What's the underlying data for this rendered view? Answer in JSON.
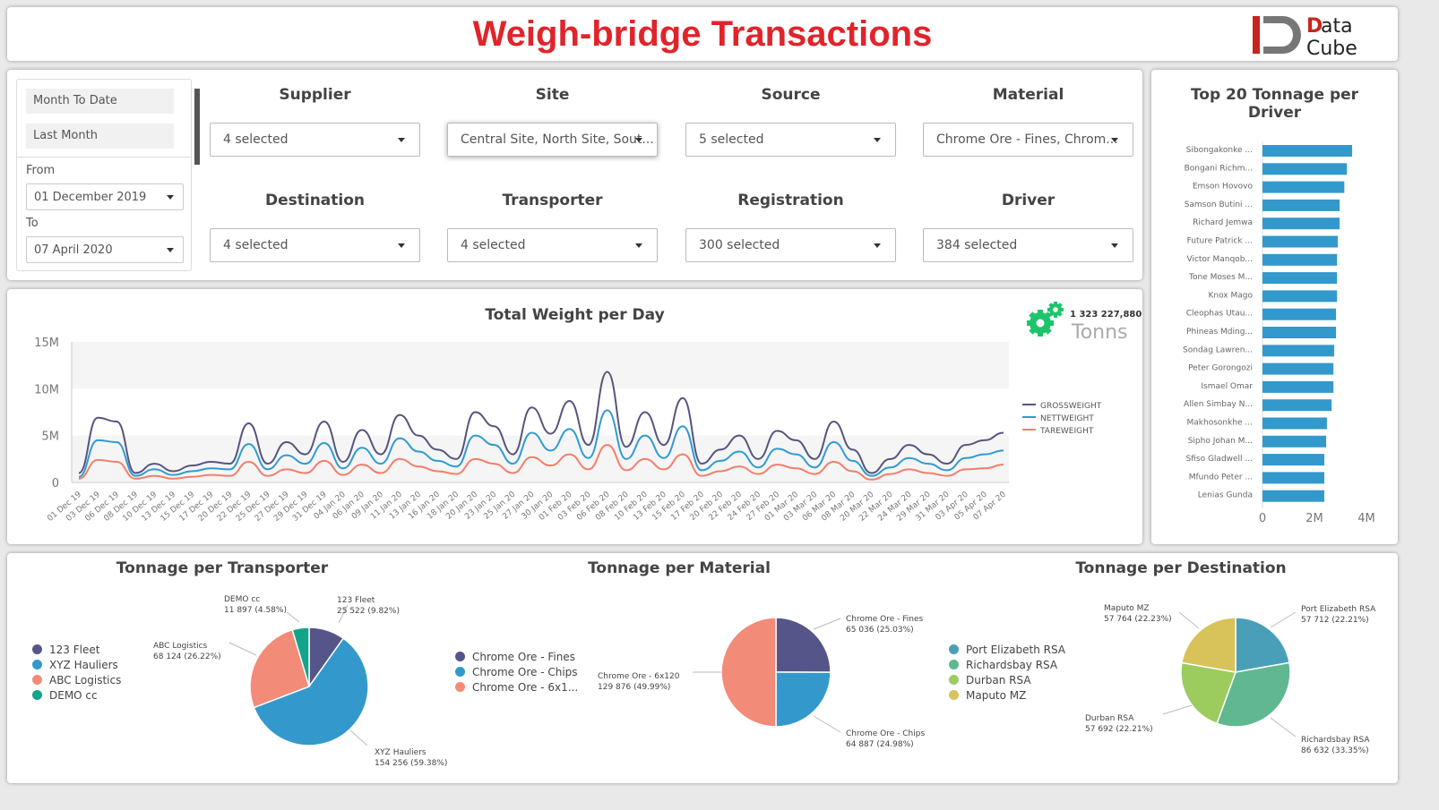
{
  "header": {
    "title": "Weigh-bridge Transactions",
    "logo_text": [
      "Data",
      "Cube"
    ]
  },
  "date_panel": {
    "presets": [
      "Month To Date",
      "Last Month"
    ],
    "from_label": "From",
    "from_value": "01 December 2019",
    "to_label": "To",
    "to_value": "07 April 2020"
  },
  "filters": [
    {
      "label": "Supplier",
      "value": "4 selected"
    },
    {
      "label": "Site",
      "value": "Central Site, North Site, Sout..."
    },
    {
      "label": "Source",
      "value": "5 selected"
    },
    {
      "label": "Material",
      "value": "Chrome Ore - Fines, Chrom..."
    },
    {
      "label": "Destination",
      "value": "4 selected"
    },
    {
      "label": "Transporter",
      "value": "4 selected"
    },
    {
      "label": "Registration",
      "value": "300 selected"
    },
    {
      "label": "Driver",
      "value": "384 selected"
    }
  ],
  "kpi": {
    "value": "1 323 227,880",
    "unit": "Tonns",
    "icon": "gears-icon",
    "color": "#1ec46b"
  },
  "chart_data": [
    {
      "type": "line",
      "title": "Total Weight per Day",
      "ylim": [
        0,
        15000000
      ],
      "yticks": [
        "0",
        "5M",
        "10M",
        "15M"
      ],
      "x": [
        "01 Dec 19",
        "03 Dec 19",
        "06 Dec 19",
        "08 Dec 19",
        "10 Dec 19",
        "13 Dec 19",
        "15 Dec 19",
        "17 Dec 19",
        "20 Dec 19",
        "22 Dec 19",
        "25 Dec 19",
        "27 Dec 19",
        "29 Dec 19",
        "31 Dec 19",
        "04 Jan 20",
        "06 Jan 20",
        "09 Jan 20",
        "11 Jan 20",
        "13 Jan 20",
        "16 Jan 20",
        "18 Jan 20",
        "20 Jan 20",
        "23 Jan 20",
        "25 Jan 20",
        "27 Jan 20",
        "30 Jan 20",
        "01 Feb 20",
        "03 Feb 20",
        "06 Feb 20",
        "08 Feb 20",
        "10 Feb 20",
        "13 Feb 20",
        "15 Feb 20",
        "17 Feb 20",
        "20 Feb 20",
        "22 Feb 20",
        "24 Feb 20",
        "27 Feb 20",
        "01 Mar 20",
        "03 Mar 20",
        "06 Mar 20",
        "08 Mar 20",
        "20 Mar 20",
        "22 Mar 20",
        "24 Mar 20",
        "29 Mar 20",
        "31 Mar 20",
        "03 Apr 20",
        "05 Apr 20",
        "07 Apr 20"
      ],
      "legend": "right",
      "series": [
        {
          "name": "GROSSWEIGHT",
          "color": "#55557f",
          "values": [
            1.0,
            6.9,
            6.5,
            1.0,
            2.0,
            1.2,
            1.8,
            2.2,
            2.0,
            6.3,
            2.0,
            4.3,
            3.0,
            6.5,
            2.2,
            5.6,
            3.0,
            7.2,
            5.0,
            3.5,
            2.5,
            7.5,
            6.0,
            3.0,
            8.0,
            5.2,
            8.7,
            4.0,
            11.8,
            3.8,
            7.5,
            4.0,
            9.0,
            2.0,
            3.5,
            5.0,
            2.5,
            5.5,
            4.5,
            2.5,
            6.5,
            3.5,
            1.0,
            2.5,
            4.0,
            3.0,
            2.0,
            4.0,
            4.5,
            5.3
          ]
        },
        {
          "name": "NETTWEIGHT",
          "color": "#2f9bd0",
          "values": [
            0.6,
            4.5,
            4.3,
            0.7,
            1.4,
            0.8,
            1.2,
            1.5,
            1.4,
            4.1,
            1.4,
            2.9,
            2.0,
            4.2,
            1.5,
            3.7,
            2.0,
            4.7,
            3.3,
            2.3,
            1.7,
            5.0,
            4.0,
            2.0,
            5.3,
            3.4,
            5.7,
            2.6,
            7.7,
            2.5,
            5.0,
            2.6,
            6.0,
            1.3,
            2.3,
            3.3,
            1.6,
            3.6,
            3.0,
            1.6,
            4.3,
            2.3,
            0.7,
            1.6,
            2.6,
            2.0,
            1.3,
            2.6,
            3.0,
            3.4
          ]
        },
        {
          "name": "TAREWEIGHT",
          "color": "#f47e6a",
          "values": [
            0.4,
            2.4,
            2.2,
            0.4,
            0.7,
            0.4,
            0.6,
            0.8,
            0.7,
            2.2,
            0.7,
            1.4,
            1.0,
            2.3,
            0.8,
            1.9,
            1.0,
            2.5,
            1.7,
            1.2,
            0.9,
            2.5,
            2.0,
            1.0,
            2.7,
            1.8,
            3.0,
            1.4,
            4.0,
            1.3,
            2.5,
            1.4,
            3.0,
            0.7,
            1.2,
            1.7,
            0.9,
            1.9,
            1.5,
            0.9,
            2.2,
            1.2,
            0.3,
            0.9,
            1.4,
            1.0,
            0.7,
            1.4,
            1.5,
            1.9
          ]
        }
      ]
    },
    {
      "type": "bar",
      "title": "Top 20 Tonnage per Driver",
      "orientation": "horizontal",
      "xlim": [
        0,
        4000000
      ],
      "xticks": [
        "0",
        "2M",
        "4M"
      ],
      "color": "#3399cc",
      "categories": [
        "Sibongakonke ...",
        "Bongani Richm...",
        "Emson Hovovo",
        "Samson Butini ...",
        "Richard Jemwa",
        "Future Patrick ...",
        "Victor Manqob...",
        "Tone Moses M...",
        "Knox Mago",
        "Cleophas Utau...",
        "Phineas Mding...",
        "Sondag Lawren...",
        "Peter Gorongozi",
        "Ismael Omar",
        "Allen Simbay N...",
        "Makhosonkhe ...",
        "Sipho Johan M...",
        "Sfiso Gladwell ...",
        "Mfundo Peter ...",
        "Lenias Gunda"
      ],
      "values": [
        3.45,
        3.25,
        3.15,
        2.97,
        2.97,
        2.9,
        2.87,
        2.87,
        2.87,
        2.83,
        2.83,
        2.76,
        2.73,
        2.73,
        2.66,
        2.48,
        2.45,
        2.38,
        2.38,
        2.38
      ]
    },
    {
      "type": "pie",
      "title": "Tonnage per Transporter",
      "legend": [
        "123 Fleet",
        "XYZ Hauliers",
        "ABC Logistics",
        "DEMO cc"
      ],
      "slices": [
        {
          "name": "123 Fleet",
          "value": 25522,
          "label": "25 522 (9.82%)",
          "color": "#56558a"
        },
        {
          "name": "XYZ Hauliers",
          "value": 154256,
          "label": "154 256 (59.38%)",
          "color": "#3399cc"
        },
        {
          "name": "ABC Logistics",
          "value": 68124,
          "label": "68 124 (26.22%)",
          "color": "#f28b78"
        },
        {
          "name": "DEMO cc",
          "value": 11897,
          "label": "11 897 (4.58%)",
          "color": "#14a38b"
        }
      ]
    },
    {
      "type": "pie",
      "title": "Tonnage per Material",
      "legend": [
        "Chrome Ore - Fines",
        "Chrome Ore - Chips",
        "Chrome Ore - 6x1..."
      ],
      "slices": [
        {
          "name": "Chrome Ore - Fines",
          "value": 65036,
          "label": "65 036 (25.03%)",
          "color": "#56558a"
        },
        {
          "name": "Chrome Ore - Chips",
          "value": 64887,
          "label": "64 887 (24.98%)",
          "color": "#3399cc"
        },
        {
          "name": "Chrome Ore - 6x120",
          "value": 129876,
          "label": "129 876 (49.99%)",
          "color": "#f28b78"
        }
      ]
    },
    {
      "type": "pie",
      "title": "Tonnage per Destination",
      "legend": [
        "Port Elizabeth RSA",
        "Richardsbay RSA",
        "Durban RSA",
        "Maputo MZ"
      ],
      "slices": [
        {
          "name": "Port Elizabeth RSA",
          "value": 57712,
          "label": "57 712 (22.21%)",
          "color": "#4a9fb8"
        },
        {
          "name": "Richardsbay RSA",
          "value": 86632,
          "label": "86 632 (33.35%)",
          "color": "#5fb88f"
        },
        {
          "name": "Durban RSA",
          "value": 57692,
          "label": "57 692 (22.21%)",
          "color": "#9ccb5e"
        },
        {
          "name": "Maputo MZ",
          "value": 57764,
          "label": "57 764 (22.23%)",
          "color": "#d8c25a"
        }
      ]
    }
  ]
}
